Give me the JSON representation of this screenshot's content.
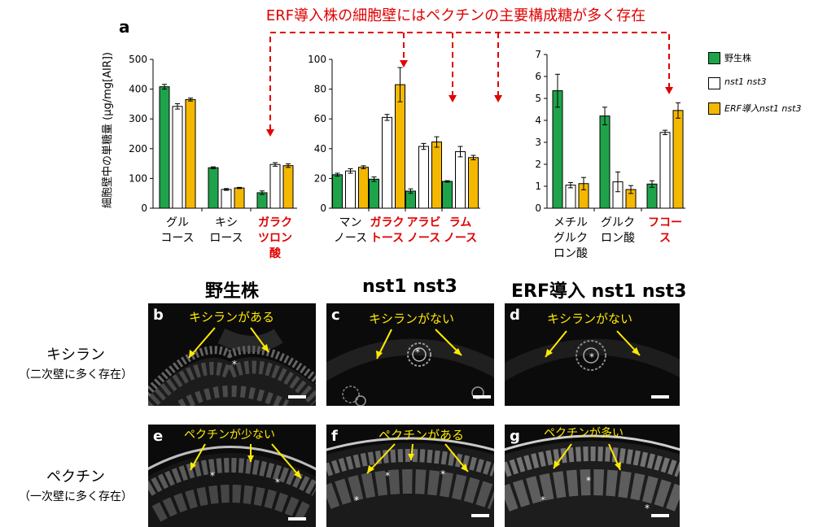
{
  "figure": {
    "panel_letter_a": "a",
    "top_annotation": "ERF導入株の細胞壁にはペクチンの主要構成糖が多く存在",
    "ylabel": "細胞壁中の単糖量 (µg/mg[AIR])",
    "colors": {
      "wt": "#1ea34a",
      "nst": "#ffffff",
      "erf": "#f5b800",
      "red": "#e00000",
      "yellow": "#ffea00"
    }
  },
  "legend": [
    {
      "label": "野生株",
      "color": "#1ea34a",
      "italic": false
    },
    {
      "label": "nst1 nst3",
      "color": "#ffffff",
      "italic": true
    },
    {
      "label": "ERF導入nst1 nst3",
      "color": "#f5b800",
      "italic": true
    }
  ],
  "chart_data": [
    {
      "type": "bar",
      "ylim": [
        0,
        500
      ],
      "yticks": [
        "0",
        "100",
        "200",
        "300",
        "400",
        "500"
      ],
      "categories": [
        {
          "label": [
            "グル",
            "コース"
          ],
          "red": false
        },
        {
          "label": [
            "キシ",
            "ロース"
          ],
          "red": false
        },
        {
          "label": [
            "ガラク",
            "ツロン",
            "酸"
          ],
          "red": true
        }
      ],
      "series": [
        {
          "values": [
            408,
            136,
            52
          ],
          "errors": [
            8,
            3,
            6
          ]
        },
        {
          "values": [
            342,
            63,
            147
          ],
          "errors": [
            9,
            3,
            6
          ]
        },
        {
          "values": [
            365,
            68,
            143
          ],
          "errors": [
            5,
            2,
            6
          ]
        }
      ]
    },
    {
      "type": "bar",
      "ylim": [
        0,
        100
      ],
      "yticks": [
        "0",
        "20",
        "40",
        "60",
        "80",
        "100"
      ],
      "categories": [
        {
          "label": [
            "マン",
            "ノース"
          ],
          "red": false
        },
        {
          "label": [
            "ガラク",
            "トース"
          ],
          "red": true
        },
        {
          "label": [
            "アラビ",
            "ノース"
          ],
          "red": true
        },
        {
          "label": [
            "ラム",
            "ノース"
          ],
          "red": true
        }
      ],
      "series": [
        {
          "values": [
            22.5,
            19.5,
            11.5,
            18
          ],
          "errors": [
            1,
            1.5,
            1.5,
            0.5
          ]
        },
        {
          "values": [
            25,
            61,
            41.5,
            38
          ],
          "errors": [
            1.5,
            2,
            2,
            3.5
          ]
        },
        {
          "values": [
            27.5,
            83,
            44.5,
            34
          ],
          "errors": [
            1,
            11.5,
            3.5,
            1.5
          ]
        }
      ]
    },
    {
      "type": "bar",
      "ylim": [
        0,
        7
      ],
      "yticks": [
        "0",
        "1",
        "2",
        "3",
        "4",
        "5",
        "6",
        "7"
      ],
      "categories": [
        {
          "label": [
            "メチル",
            "グルク",
            "ロン酸"
          ],
          "red": false
        },
        {
          "label": [
            "グルク",
            "ロン酸"
          ],
          "red": false
        },
        {
          "label": [
            "フコー",
            "ス"
          ],
          "red": true
        }
      ],
      "series": [
        {
          "values": [
            5.35,
            4.2,
            1.1
          ],
          "errors": [
            0.75,
            0.4,
            0.15
          ]
        },
        {
          "values": [
            1.05,
            1.2,
            3.45
          ],
          "errors": [
            0.12,
            0.45,
            0.1
          ]
        },
        {
          "values": [
            1.12,
            0.85,
            4.45
          ],
          "errors": [
            0.28,
            0.18,
            0.35
          ]
        }
      ]
    }
  ],
  "micrographs": {
    "columns": [
      "野生株",
      "nst1 nst3",
      "ERF導入 nst1 nst3"
    ],
    "rows": [
      {
        "title": "キシラン",
        "subtitle": "（二次壁に多く存在）"
      },
      {
        "title": "ペクチン",
        "subtitle": "（一次壁に多く存在）"
      }
    ],
    "panels": [
      {
        "letter": "b",
        "annotation": "キシランがある"
      },
      {
        "letter": "c",
        "annotation": "キシランがない"
      },
      {
        "letter": "d",
        "annotation": "キシランがない"
      },
      {
        "letter": "e",
        "annotation": "ペクチンが少ない"
      },
      {
        "letter": "f",
        "annotation": "ペクチンがある"
      },
      {
        "letter": "g",
        "annotation": "ペクチンが多い"
      }
    ],
    "star": "*"
  }
}
